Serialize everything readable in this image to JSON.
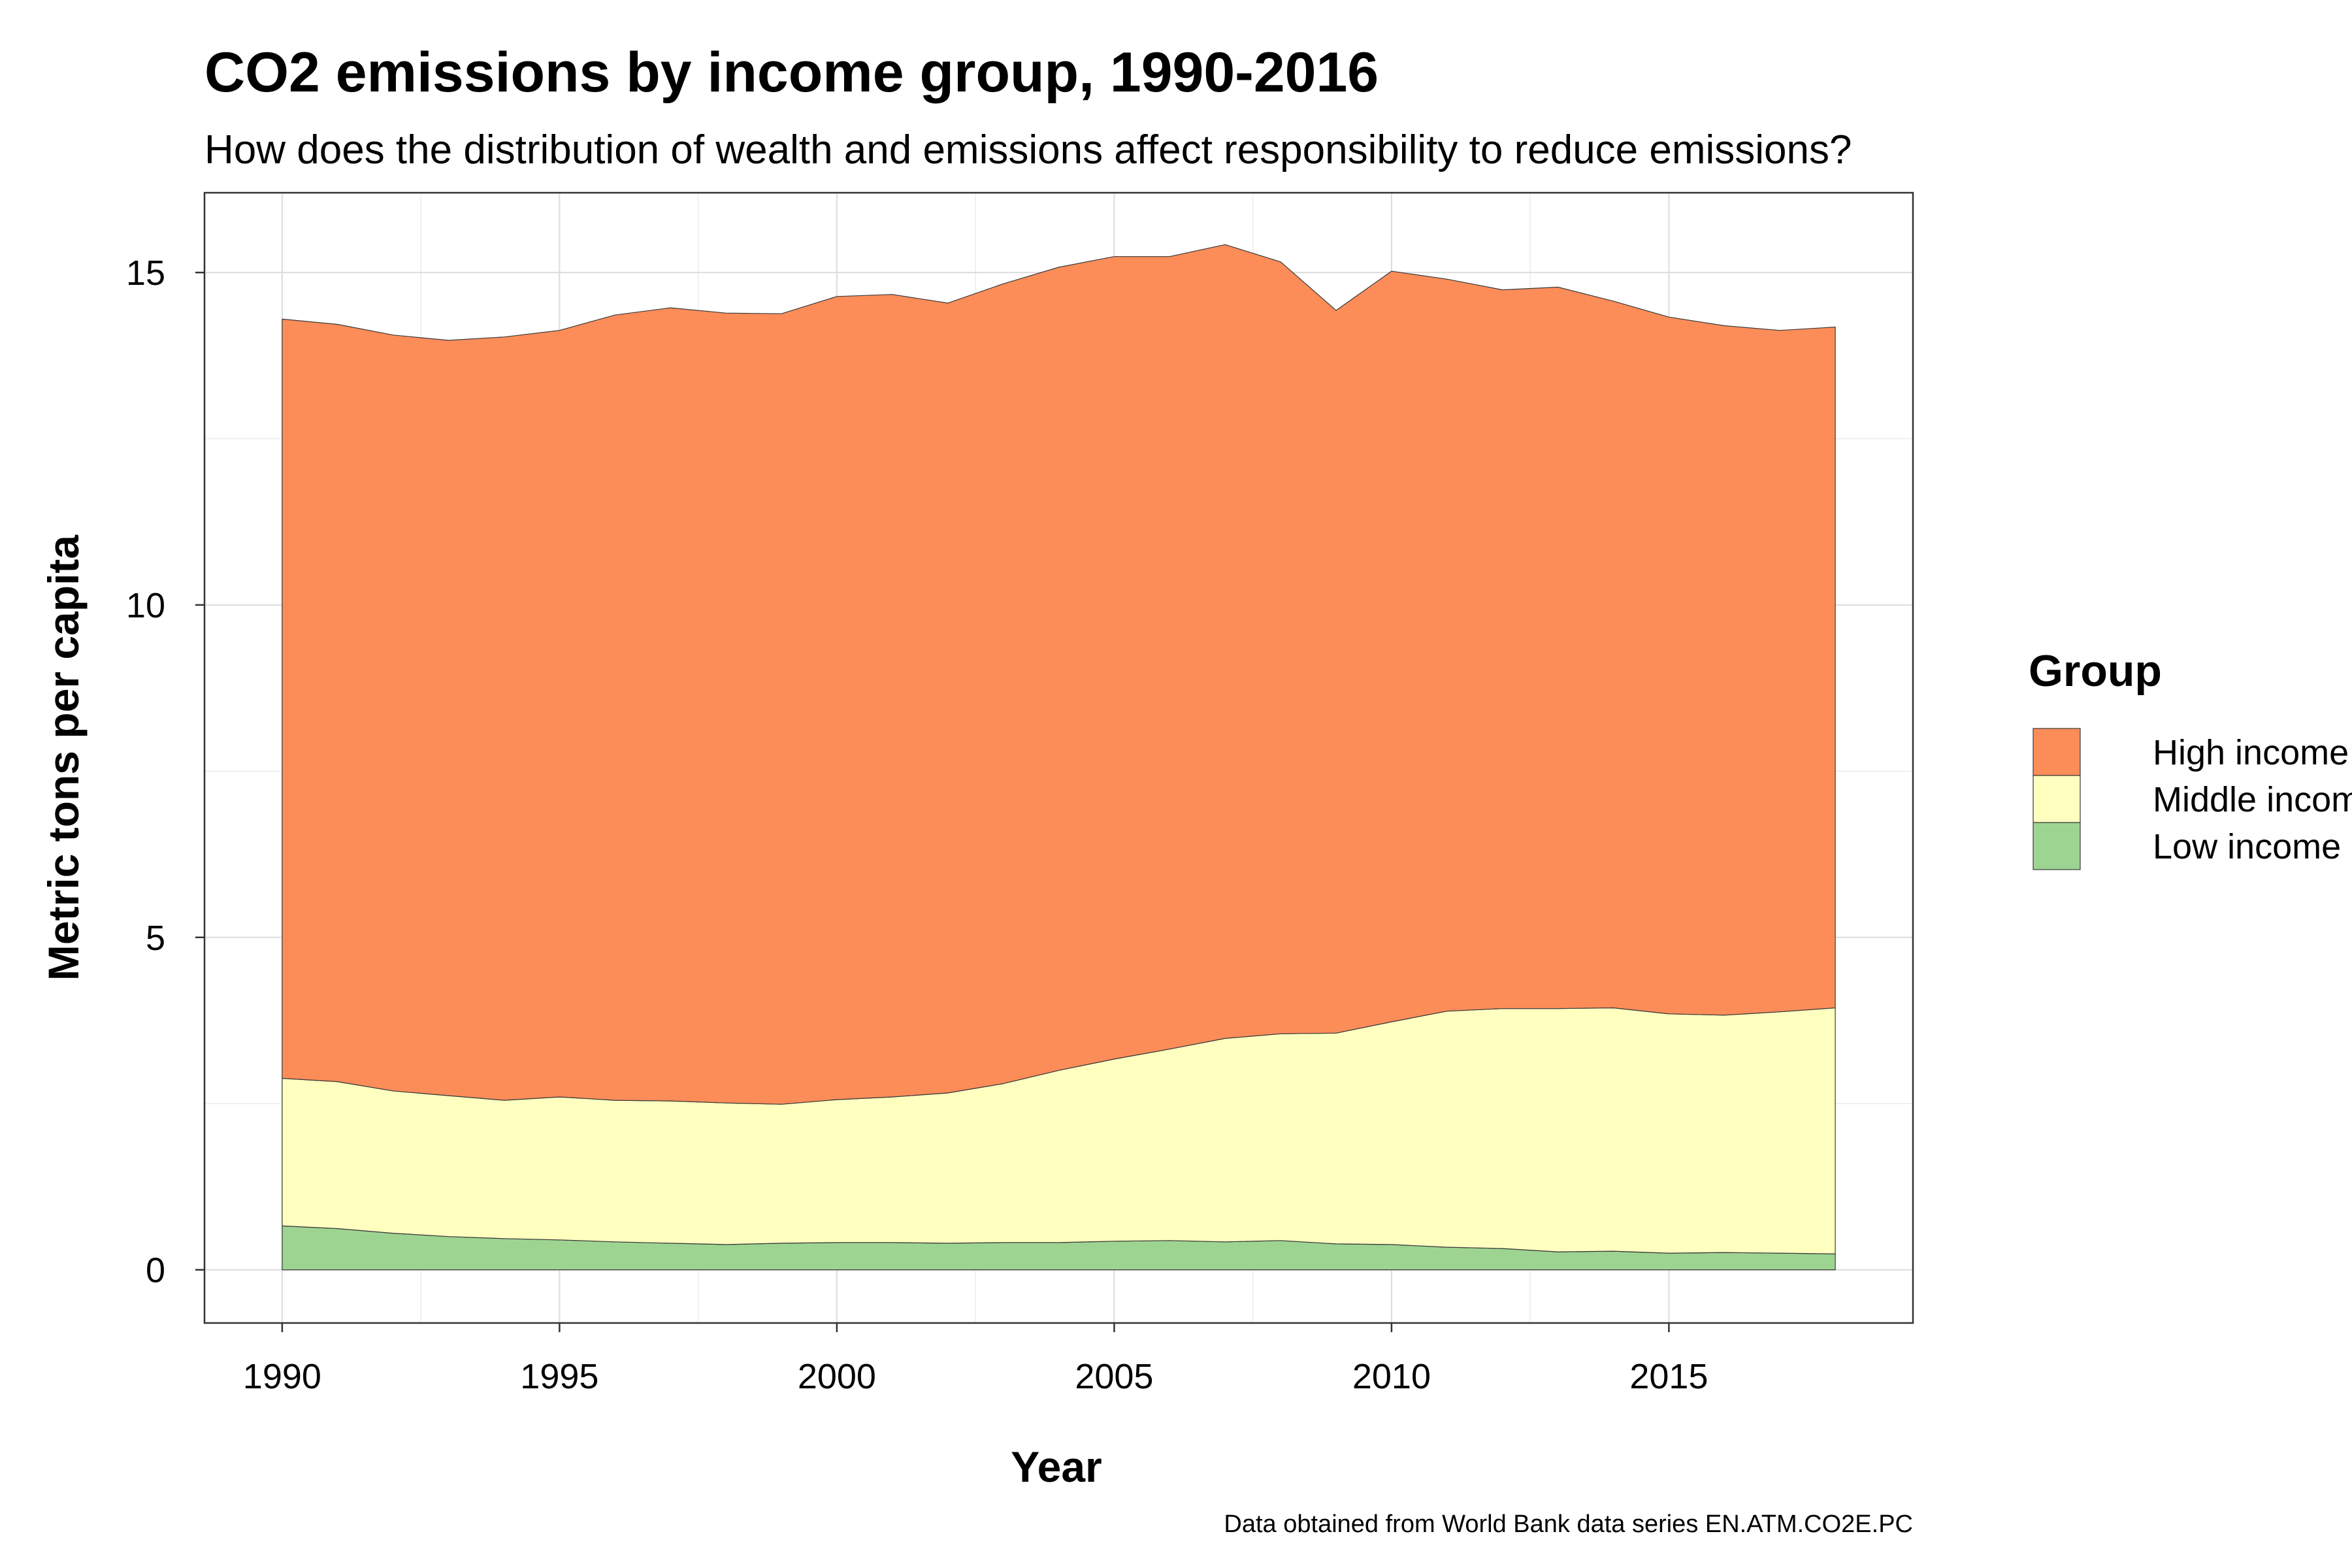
{
  "chart_data": {
    "type": "area",
    "stacked": true,
    "title": "CO2 emissions by income group, 1990-2016",
    "subtitle": "How does the distribution of wealth and emissions affect responsibility to reduce emissions?",
    "xlabel": "Year",
    "ylabel": "Metric tons per capita",
    "caption": "Data obtained from World Bank data series EN.ATM.CO2E.PC",
    "xlim": [
      1988.6,
      2019.4
    ],
    "ylim": [
      -0.8,
      16.2
    ],
    "x_ticks": [
      1990,
      1995,
      2000,
      2005,
      2010,
      2015
    ],
    "y_ticks": [
      0,
      5,
      10,
      15
    ],
    "grid": true,
    "legend": {
      "title": "Group",
      "position": "right"
    },
    "x": [
      1990,
      1991,
      1992,
      1993,
      1994,
      1995,
      1996,
      1997,
      1998,
      1999,
      2000,
      2001,
      2002,
      2003,
      2004,
      2005,
      2006,
      2007,
      2008,
      2009,
      2010,
      2011,
      2012,
      2013,
      2014,
      2015,
      2016,
      2017,
      2018
    ],
    "series": [
      {
        "name": "Low income",
        "color": "#9ed492",
        "values": [
          0.66,
          0.62,
          0.55,
          0.5,
          0.47,
          0.45,
          0.42,
          0.4,
          0.38,
          0.4,
          0.41,
          0.41,
          0.4,
          0.41,
          0.41,
          0.43,
          0.44,
          0.42,
          0.44,
          0.39,
          0.38,
          0.34,
          0.32,
          0.27,
          0.28,
          0.25,
          0.26,
          0.25,
          0.24
        ]
      },
      {
        "name": "Middle income",
        "color": "#ffffbf",
        "values": [
          2.22,
          2.21,
          2.14,
          2.12,
          2.08,
          2.15,
          2.13,
          2.14,
          2.13,
          2.09,
          2.15,
          2.19,
          2.26,
          2.39,
          2.59,
          2.74,
          2.88,
          3.06,
          3.11,
          3.17,
          3.35,
          3.55,
          3.61,
          3.66,
          3.66,
          3.6,
          3.57,
          3.63,
          3.7
        ]
      },
      {
        "name": "High income",
        "color": "#fc8d59",
        "values": [
          11.42,
          11.39,
          11.37,
          11.36,
          11.48,
          11.53,
          11.81,
          11.93,
          11.88,
          11.89,
          12.08,
          12.07,
          11.88,
          12.03,
          12.08,
          12.07,
          11.92,
          11.94,
          11.61,
          10.87,
          11.29,
          11.01,
          10.81,
          10.85,
          10.63,
          10.48,
          10.37,
          10.25,
          10.24
        ]
      }
    ],
    "legend_order": [
      "High income",
      "Middle income",
      "Low income"
    ]
  }
}
